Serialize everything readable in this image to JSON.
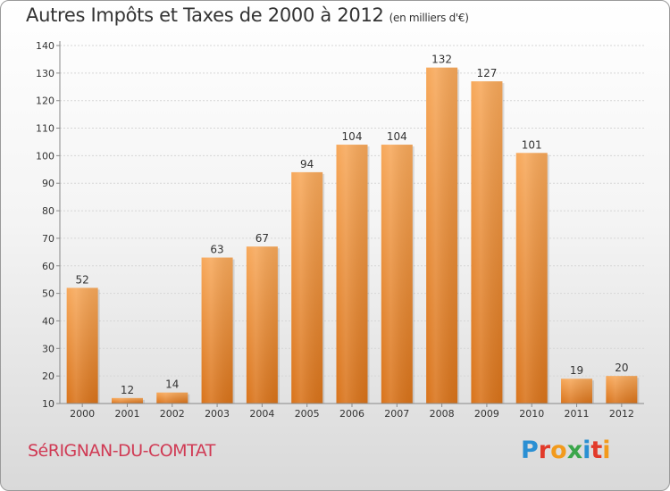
{
  "header": {
    "title": "Autres Impôts et Taxes de 2000 à 2012",
    "unit": "(en milliers d'€)"
  },
  "footer": {
    "commune": "SéRIGNAN-DU-COMTAT",
    "logo": "Proxiti",
    "logo_colors": [
      "#2a8fd3",
      "#e23a2a",
      "#f29a1c",
      "#3aa64a",
      "#2a8fd3",
      "#e23a2a",
      "#f29a1c"
    ]
  },
  "chart_data": {
    "type": "bar",
    "categories": [
      "2000",
      "2001",
      "2002",
      "2003",
      "2004",
      "2005",
      "2006",
      "2007",
      "2008",
      "2009",
      "2010",
      "2011",
      "2012"
    ],
    "values": [
      52,
      12,
      14,
      63,
      67,
      94,
      104,
      104,
      132,
      127,
      101,
      19,
      20
    ],
    "ylim": [
      10,
      140
    ],
    "yticks": [
      10,
      20,
      30,
      40,
      50,
      60,
      70,
      80,
      90,
      100,
      110,
      120,
      130,
      140
    ],
    "grid": true,
    "bar_color": "#f0923a",
    "title": "Autres Impôts et Taxes de 2000 à 2012",
    "xlabel": "",
    "ylabel": ""
  }
}
